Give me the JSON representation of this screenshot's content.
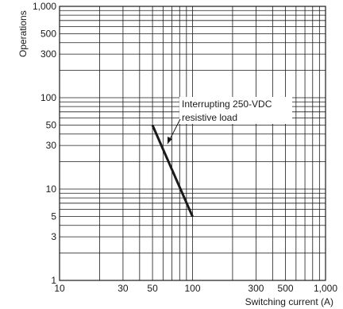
{
  "chart_data": {
    "type": "line",
    "title": "",
    "xlabel": "Switching current (A)",
    "ylabel": "Operations",
    "x_scale": "log",
    "y_scale": "log",
    "xlim": [
      10,
      1000
    ],
    "ylim": [
      1,
      1000
    ],
    "grid": true,
    "x_ticks": [
      {
        "value": 10,
        "label": "10"
      },
      {
        "value": 30,
        "label": "30"
      },
      {
        "value": 50,
        "label": "50"
      },
      {
        "value": 100,
        "label": "100"
      },
      {
        "value": 300,
        "label": "300"
      },
      {
        "value": 500,
        "label": "500"
      },
      {
        "value": 1000,
        "label": "1,000"
      }
    ],
    "y_ticks": [
      {
        "value": 1,
        "label": "1"
      },
      {
        "value": 3,
        "label": "3"
      },
      {
        "value": 5,
        "label": "5"
      },
      {
        "value": 10,
        "label": "10"
      },
      {
        "value": 30,
        "label": "30"
      },
      {
        "value": 50,
        "label": "50"
      },
      {
        "value": 100,
        "label": "100"
      },
      {
        "value": 300,
        "label": "300"
      },
      {
        "value": 500,
        "label": "500"
      },
      {
        "value": 1000,
        "label": "1,000"
      }
    ],
    "series": [
      {
        "points": [
          {
            "x": 50,
            "y": 50
          },
          {
            "x": 100,
            "y": 5
          }
        ]
      }
    ],
    "annotation": {
      "lines": [
        "Interrupting 250-VDC",
        "resistive load"
      ]
    }
  }
}
